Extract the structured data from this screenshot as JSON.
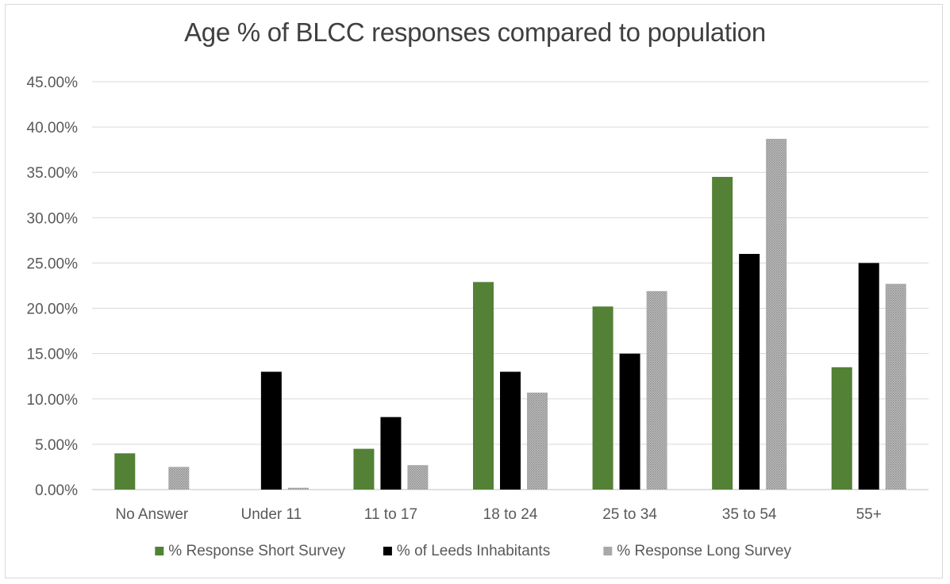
{
  "chart_data": {
    "type": "bar",
    "title": "Age % of BLCC responses compared to population",
    "xlabel": "",
    "ylabel": "",
    "ylim": [
      0,
      0.45
    ],
    "ytick_step": 0.05,
    "ytick_labels": [
      "0.00%",
      "5.00%",
      "10.00%",
      "15.00%",
      "20.00%",
      "25.00%",
      "30.00%",
      "35.00%",
      "40.00%",
      "45.00%"
    ],
    "categories": [
      "No Answer",
      "Under 11",
      "11 to 17",
      "18 to 24",
      "25 to 34",
      "35 to 54",
      "55+"
    ],
    "series": [
      {
        "name": "% Response Short Survey",
        "color": "#538135",
        "pattern": "solid",
        "values": [
          0.04,
          0.0,
          0.045,
          0.229,
          0.202,
          0.345,
          0.135
        ]
      },
      {
        "name": "% of Leeds Inhabitants",
        "color": "#000000",
        "pattern": "solid",
        "values": [
          0.0,
          0.13,
          0.08,
          0.13,
          0.15,
          0.26,
          0.25
        ]
      },
      {
        "name": "% Response Long Survey",
        "color": "#a6a6a6",
        "pattern": "dotted",
        "values": [
          0.025,
          0.002,
          0.027,
          0.107,
          0.219,
          0.387,
          0.227
        ]
      }
    ],
    "grid": true,
    "legend_position": "bottom"
  }
}
